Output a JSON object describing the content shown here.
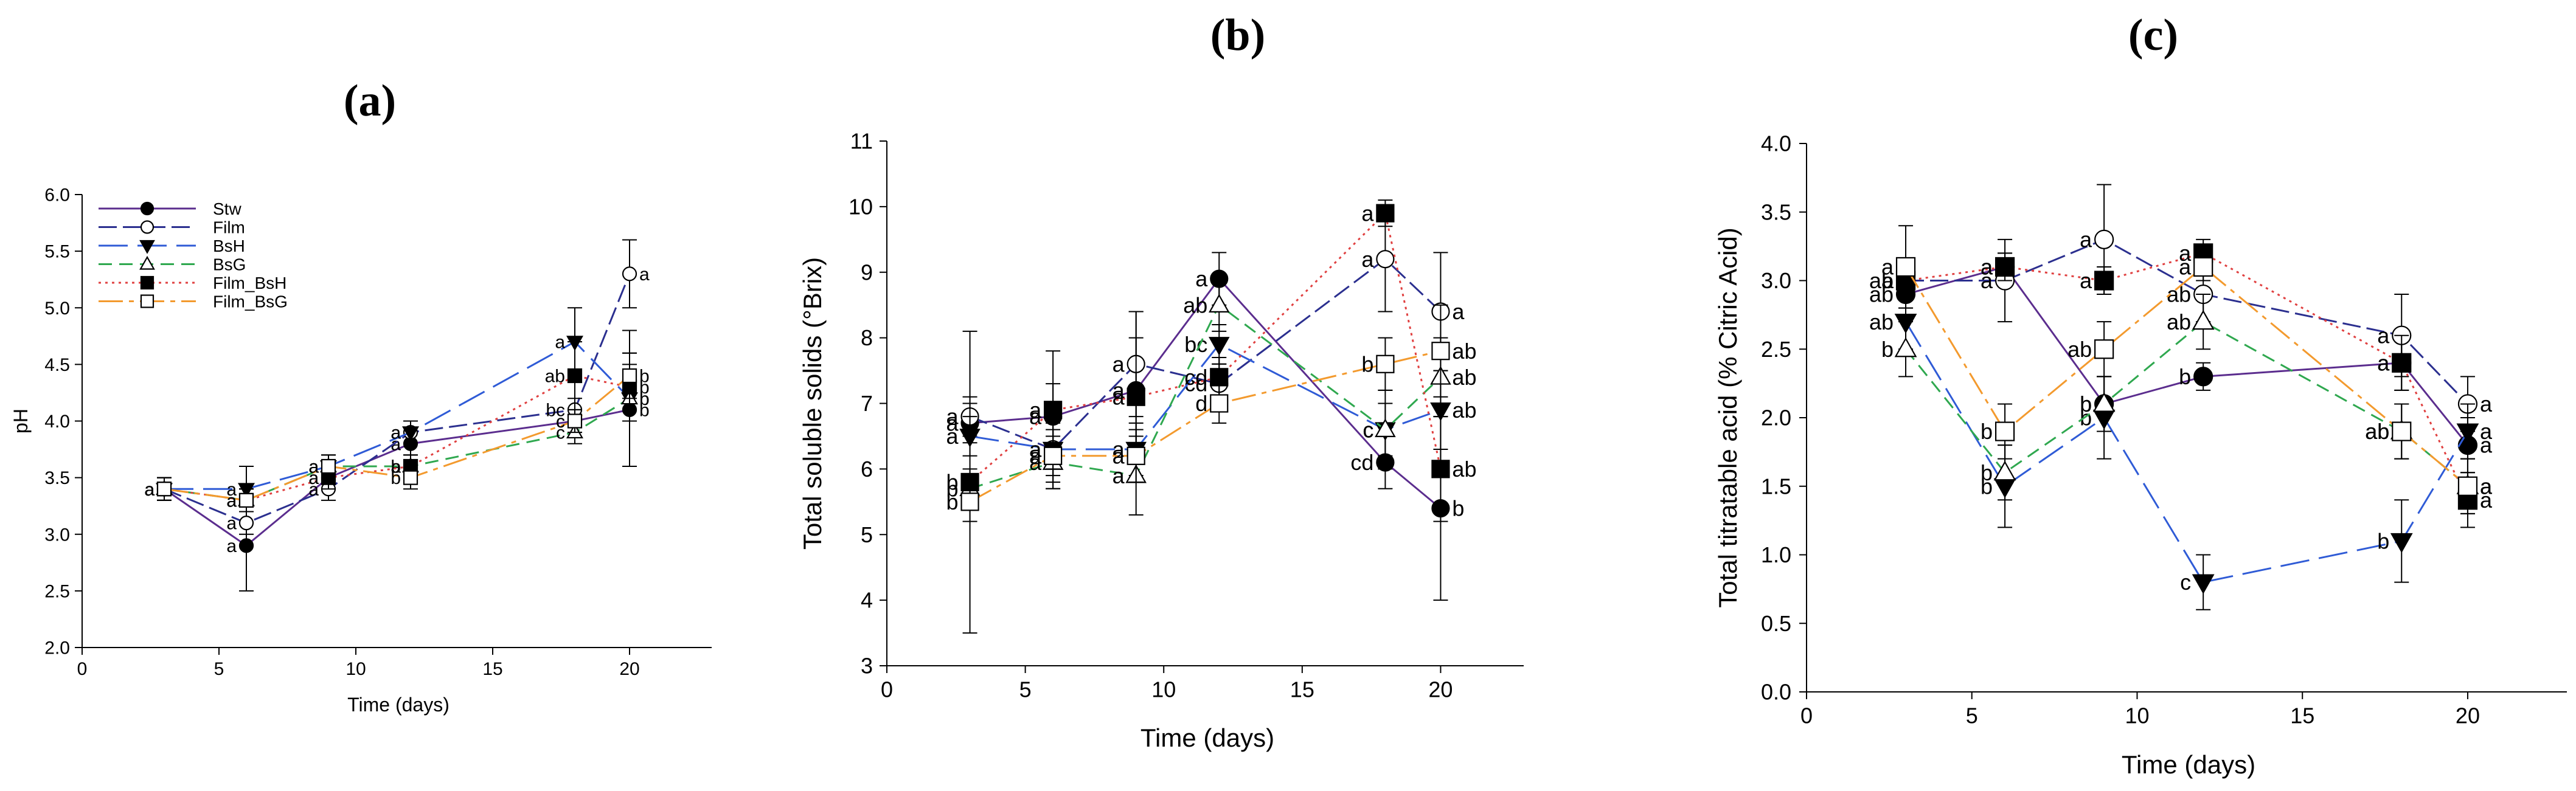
{
  "styles": {
    "Stw": {
      "color": "#5b2d8e",
      "marker": "circle",
      "fill": "#000000",
      "dash": ""
    },
    "Film": {
      "color": "#2b2f8f",
      "marker": "circle",
      "fill": "#ffffff",
      "dash": "30,10"
    },
    "BsH": {
      "color": "#2f5bd6",
      "marker": "triangle-down",
      "fill": "#000000",
      "dash": "48,16"
    },
    "BsG": {
      "color": "#2fa84f",
      "marker": "triangle-up",
      "fill": "#ffffff",
      "dash": "22,12"
    },
    "Film_BsH": {
      "color": "#e04040",
      "marker": "square",
      "fill": "#000000",
      "dash": "4,7"
    },
    "Film_BsG": {
      "color": "#f39a2e",
      "marker": "square",
      "fill": "#ffffff",
      "dash": "40,10,8,10"
    }
  },
  "chart_data": [
    {
      "type": "line",
      "panel_label": "(a)",
      "xlabel": "Time (days)",
      "ylabel": "pH",
      "xlim": [
        0,
        23
      ],
      "ylim": [
        2.0,
        6.0
      ],
      "xticks": [
        "0",
        "5",
        "10",
        "15",
        "20"
      ],
      "yticks": [
        "2.0",
        "2.5",
        "3.0",
        "3.5",
        "4.0",
        "4.5",
        "5.0",
        "5.5",
        "6.0"
      ],
      "legend": [
        "Stw",
        "Film",
        "BsH",
        "BsG",
        "Film_BsH",
        "Film_BsG"
      ],
      "legend_position": "top-left",
      "x": [
        3,
        6,
        9,
        12,
        18,
        20
      ],
      "series": [
        {
          "name": "Stw",
          "values": [
            3.4,
            2.9,
            3.5,
            3.8,
            4.0,
            4.1
          ],
          "err": [
            0.1,
            0.4,
            0.1,
            0.1,
            0.1,
            0.5
          ],
          "letters": [
            "a",
            "a",
            "a",
            "a",
            "c",
            "b"
          ]
        },
        {
          "name": "Film",
          "values": [
            3.4,
            3.1,
            3.4,
            3.9,
            4.1,
            5.3
          ],
          "err": [
            0.1,
            0.1,
            0.1,
            0.1,
            0.1,
            0.3
          ],
          "letters": [
            "a",
            "a",
            "a",
            "a",
            "bc",
            "a"
          ]
        },
        {
          "name": "BsH",
          "values": [
            3.4,
            3.4,
            3.6,
            3.9,
            4.7,
            4.2
          ],
          "err": [
            0.1,
            0.2,
            0.1,
            0.1,
            0.3,
            0.6
          ],
          "letters": [
            "a",
            "a",
            "a",
            "a",
            "a",
            "b"
          ]
        },
        {
          "name": "BsG",
          "values": [
            3.4,
            3.3,
            3.6,
            3.6,
            3.9,
            4.2
          ],
          "err": [
            0.1,
            0.1,
            0.1,
            0.1,
            0.1,
            0.2
          ],
          "letters": [
            "a",
            "a",
            "a",
            "a",
            "c",
            "b"
          ]
        },
        {
          "name": "Film_BsH",
          "values": [
            3.4,
            3.3,
            3.5,
            3.6,
            4.4,
            4.3
          ],
          "err": [
            0.1,
            0.1,
            0.1,
            0.1,
            0.3,
            0.2
          ],
          "letters": [
            "a",
            "a",
            "a",
            "b",
            "ab",
            "b"
          ]
        },
        {
          "name": "Film_BsG",
          "values": [
            3.4,
            3.3,
            3.6,
            3.5,
            4.0,
            4.4
          ],
          "err": [
            0.1,
            0.1,
            0.1,
            0.1,
            0.1,
            0.2
          ],
          "letters": [
            "a",
            "a",
            "a",
            "b",
            "c",
            "b"
          ]
        }
      ]
    },
    {
      "type": "line",
      "panel_label": "(b)",
      "xlabel": "Time (days)",
      "ylabel": "Total soluble solids (°Brix)",
      "xlim": [
        0,
        23
      ],
      "ylim": [
        3,
        11
      ],
      "xticks": [
        "0",
        "5",
        "10",
        "15",
        "20"
      ],
      "yticks": [
        "3",
        "4",
        "5",
        "6",
        "7",
        "8",
        "9",
        "10",
        "11"
      ],
      "x": [
        3,
        6,
        9,
        12,
        18,
        20
      ],
      "series": [
        {
          "name": "Stw",
          "values": [
            6.7,
            6.8,
            7.2,
            8.9,
            6.1,
            5.4
          ],
          "err": [
            0.3,
            0.5,
            0.8,
            0.4,
            0.4,
            1.4
          ],
          "letters": [
            "a",
            "a",
            "a",
            "a",
            "cd",
            "b"
          ]
        },
        {
          "name": "Film",
          "values": [
            6.8,
            6.3,
            7.6,
            7.3,
            9.2,
            8.4
          ],
          "err": [
            0.3,
            0.4,
            0.8,
            0.3,
            0.8,
            0.9
          ],
          "letters": [
            "a",
            "a",
            "a",
            "cd",
            "a",
            "a"
          ]
        },
        {
          "name": "BsH",
          "values": [
            6.5,
            6.3,
            6.3,
            7.9,
            6.6,
            6.9
          ],
          "err": [
            0.3,
            0.6,
            0.4,
            0.3,
            0.6,
            0.6
          ],
          "letters": [
            "a",
            "a",
            "a",
            "bc",
            "c",
            "ab"
          ]
        },
        {
          "name": "BsG",
          "values": [
            5.7,
            6.1,
            5.9,
            8.5,
            6.6,
            7.4
          ],
          "err": [
            0.3,
            0.4,
            0.6,
            0.4,
            0.4,
            0.6
          ],
          "letters": [
            "b",
            "a",
            "a",
            "ab",
            "c",
            "ab"
          ]
        },
        {
          "name": "Film_BsH",
          "values": [
            5.8,
            6.9,
            7.1,
            7.4,
            9.9,
            6.0
          ],
          "err": [
            2.3,
            0.9,
            1.3,
            0.3,
            0.2,
            0.8
          ],
          "letters": [
            "b",
            "a",
            "a",
            "cd",
            "a",
            "ab"
          ]
        },
        {
          "name": "Film_BsG",
          "values": [
            5.5,
            6.2,
            6.2,
            7.0,
            7.6,
            7.8
          ],
          "err": [
            0.3,
            0.4,
            0.4,
            0.3,
            0.4,
            0.7
          ],
          "letters": [
            "b",
            "a",
            "a",
            "d",
            "b",
            "ab"
          ]
        }
      ]
    },
    {
      "type": "line",
      "panel_label": "(c)",
      "xlabel": "Time (days)",
      "ylabel": "Total titratable acid (% Citric Acid)",
      "xlim": [
        0,
        23
      ],
      "ylim": [
        0.0,
        4.0
      ],
      "xticks": [
        "0",
        "5",
        "10",
        "15",
        "20"
      ],
      "yticks": [
        "0.0",
        "0.5",
        "1.0",
        "1.5",
        "2.0",
        "2.5",
        "3.0",
        "3.5",
        "4.0"
      ],
      "x": [
        3,
        6,
        9,
        12,
        18,
        20
      ],
      "series": [
        {
          "name": "Stw",
          "values": [
            2.9,
            3.1,
            2.1,
            2.3,
            2.4,
            1.8
          ],
          "err": [
            0.1,
            0.1,
            0.2,
            0.1,
            0.2,
            0.2
          ],
          "letters": [
            "ab",
            "a",
            "b",
            "b",
            "a",
            "a"
          ]
        },
        {
          "name": "Film",
          "values": [
            3.0,
            3.0,
            3.3,
            2.9,
            2.6,
            2.1
          ],
          "err": [
            0.1,
            0.3,
            0.4,
            0.2,
            0.3,
            0.2
          ],
          "letters": [
            "a",
            "a",
            "a",
            "ab",
            "a",
            "a"
          ]
        },
        {
          "name": "BsH",
          "values": [
            2.7,
            1.5,
            2.0,
            0.8,
            1.1,
            1.9
          ],
          "err": [
            0.2,
            0.3,
            0.3,
            0.2,
            0.3,
            0.2
          ],
          "letters": [
            "ab",
            "b",
            "b",
            "c",
            "b",
            "a"
          ]
        },
        {
          "name": "BsG",
          "values": [
            2.5,
            1.6,
            2.1,
            2.7,
            1.9,
            1.5
          ],
          "err": [
            0.2,
            0.2,
            0.2,
            0.2,
            0.2,
            0.2
          ],
          "letters": [
            "b",
            "b",
            "b",
            "ab",
            "ab",
            "a"
          ]
        },
        {
          "name": "Film_BsH",
          "values": [
            3.0,
            3.1,
            3.0,
            3.2,
            2.4,
            1.4
          ],
          "err": [
            0.1,
            0.1,
            0.1,
            0.1,
            0.2,
            0.2
          ],
          "letters": [
            "ab",
            "a",
            "a",
            "a",
            "a",
            "a"
          ]
        },
        {
          "name": "Film_BsG",
          "values": [
            3.1,
            1.9,
            2.5,
            3.1,
            1.9,
            1.5
          ],
          "err": [
            0.3,
            0.2,
            0.2,
            0.1,
            0.2,
            0.2
          ],
          "letters": [
            "a",
            "b",
            "ab",
            "a",
            "ab",
            "a"
          ]
        }
      ]
    }
  ]
}
